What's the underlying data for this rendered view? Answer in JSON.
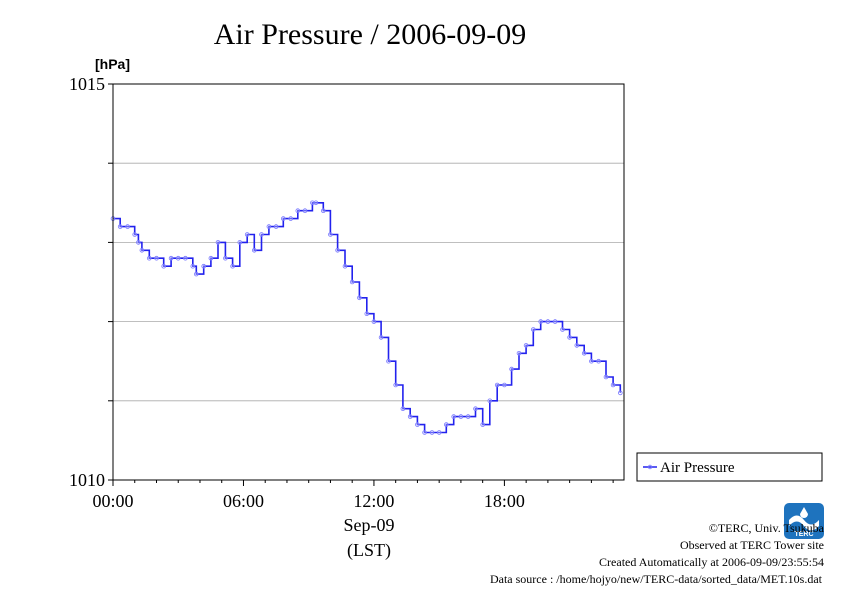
{
  "chart_data": {
    "type": "line",
    "title": "Air Pressure / 2006-09-09",
    "ylabel": "[hPa]",
    "xlabel_date": "Sep-09",
    "xlabel_tz": "(LST)",
    "ylim": [
      1010,
      1015
    ],
    "y_ticks": [
      1010,
      1011,
      1012,
      1013,
      1014,
      1015
    ],
    "y_tick_labels": {
      "1010": "1010",
      "1015": "1015"
    },
    "xlim": [
      0,
      23.5
    ],
    "x_ticks": [
      0,
      6,
      12,
      18
    ],
    "x_tick_labels": [
      "00:00",
      "06:00",
      "12:00",
      "18:00"
    ],
    "grid": true,
    "legend_position": "bottom-right",
    "colors": {
      "line": "#2222ee",
      "markers": "#7777ff",
      "grid": "#aaaaaa",
      "frame": "#000000"
    },
    "series": [
      {
        "name": "Air Pressure",
        "x": [
          0,
          0.33,
          0.67,
          1,
          1.17,
          1.33,
          1.67,
          2,
          2.33,
          2.67,
          3,
          3.33,
          3.67,
          3.83,
          4.17,
          4.5,
          4.83,
          5.17,
          5.5,
          5.83,
          6.17,
          6.5,
          6.83,
          7.17,
          7.5,
          7.83,
          8.17,
          8.5,
          8.83,
          9.17,
          9.33,
          9.67,
          10,
          10.33,
          10.67,
          11,
          11.33,
          11.67,
          12,
          12.33,
          12.67,
          13,
          13.33,
          13.67,
          14,
          14.33,
          14.67,
          15,
          15.33,
          15.67,
          16,
          16.33,
          16.67,
          17,
          17.33,
          17.67,
          18,
          18.33,
          18.67,
          19,
          19.33,
          19.67,
          20,
          20.33,
          20.67,
          21,
          21.33,
          21.67,
          22,
          22.33,
          22.67,
          23,
          23.33
        ],
        "values": [
          1013.3,
          1013.2,
          1013.2,
          1013.1,
          1013.0,
          1012.9,
          1012.8,
          1012.8,
          1012.7,
          1012.8,
          1012.8,
          1012.8,
          1012.7,
          1012.6,
          1012.7,
          1012.8,
          1013.0,
          1012.8,
          1012.7,
          1013.0,
          1013.1,
          1012.9,
          1013.1,
          1013.2,
          1013.2,
          1013.3,
          1013.3,
          1013.4,
          1013.4,
          1013.5,
          1013.5,
          1013.4,
          1013.1,
          1012.9,
          1012.7,
          1012.5,
          1012.3,
          1012.1,
          1012.0,
          1011.8,
          1011.5,
          1011.2,
          1010.9,
          1010.8,
          1010.7,
          1010.6,
          1010.6,
          1010.6,
          1010.7,
          1010.8,
          1010.8,
          1010.8,
          1010.9,
          1010.7,
          1011.0,
          1011.2,
          1011.2,
          1011.4,
          1011.6,
          1011.7,
          1011.9,
          1012.0,
          1012.0,
          1012.0,
          1011.9,
          1011.8,
          1011.7,
          1011.6,
          1011.5,
          1011.5,
          1011.3,
          1011.2,
          1011.1
        ]
      }
    ]
  },
  "legend": {
    "label": "Air Pressure"
  },
  "footer": {
    "credit": "©TERC, Univ. Tsukuba",
    "observed": "Observed at TERC Tower site",
    "created": "Created Automatically at 2006-09-09/23:55:54",
    "source": "Data source : /home/hojyo/new/TERC-data/sorted_data/MET.10s.dat"
  },
  "logo": {
    "text": "TERC"
  }
}
